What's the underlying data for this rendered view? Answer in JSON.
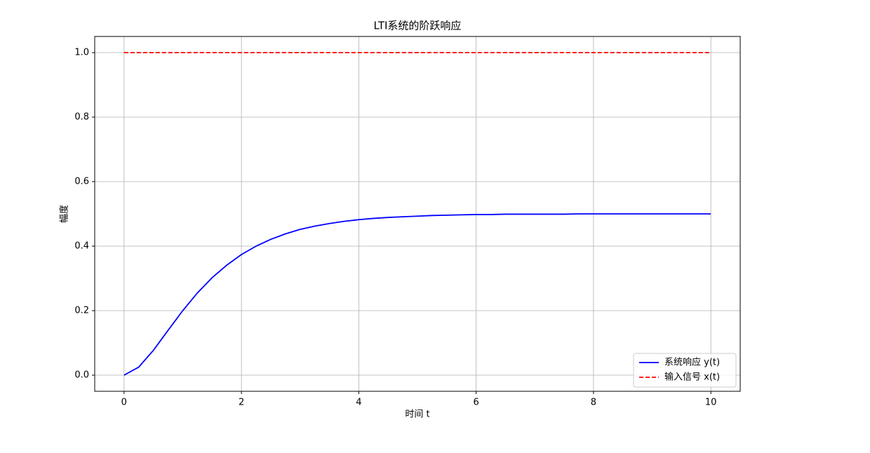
{
  "chart_data": {
    "type": "line",
    "title": "LTI系统的阶跃响应",
    "x_label": "时间 t",
    "y_label": "幅度",
    "x": [
      0,
      0.25,
      0.5,
      0.75,
      1,
      1.25,
      1.5,
      1.75,
      2,
      2.25,
      2.5,
      2.75,
      3,
      3.25,
      3.5,
      3.75,
      4,
      4.25,
      4.5,
      4.75,
      5,
      5.25,
      5.5,
      5.75,
      6,
      6.25,
      6.5,
      6.75,
      7,
      7.25,
      7.5,
      7.75,
      8,
      8.25,
      8.5,
      8.75,
      9,
      9.25,
      9.5,
      9.75,
      10
    ],
    "series": [
      {
        "name": "系统响应 y(t)",
        "color": "#0000ff",
        "dash": false,
        "values": [
          0,
          0.025,
          0.077,
          0.139,
          0.2,
          0.255,
          0.302,
          0.341,
          0.374,
          0.4,
          0.421,
          0.438,
          0.452,
          0.462,
          0.47,
          0.477,
          0.482,
          0.486,
          0.489,
          0.491,
          0.493,
          0.495,
          0.496,
          0.497,
          0.498,
          0.498,
          0.499,
          0.499,
          0.499,
          0.499,
          0.499,
          0.5,
          0.5,
          0.5,
          0.5,
          0.5,
          0.5,
          0.5,
          0.5,
          0.5,
          0.5
        ]
      },
      {
        "name": "输入信号 x(t)",
        "color": "#ff0000",
        "dash": true,
        "values": [
          1,
          1,
          1,
          1,
          1,
          1,
          1,
          1,
          1,
          1,
          1,
          1,
          1,
          1,
          1,
          1,
          1,
          1,
          1,
          1,
          1,
          1,
          1,
          1,
          1,
          1,
          1,
          1,
          1,
          1,
          1,
          1,
          1,
          1,
          1,
          1,
          1,
          1,
          1,
          1,
          1
        ]
      }
    ],
    "xlim": [
      -0.5,
      10.5
    ],
    "xticks": [
      0,
      2,
      4,
      6,
      8,
      10
    ],
    "ylim": [
      -0.05,
      1.05
    ],
    "yticks": [
      {
        "value": 0,
        "label": "0.0"
      },
      0.2,
      0.4,
      0.6,
      0.8,
      {
        "value": 1,
        "label": "1.0"
      }
    ],
    "grid": true,
    "legend": "lower right"
  }
}
